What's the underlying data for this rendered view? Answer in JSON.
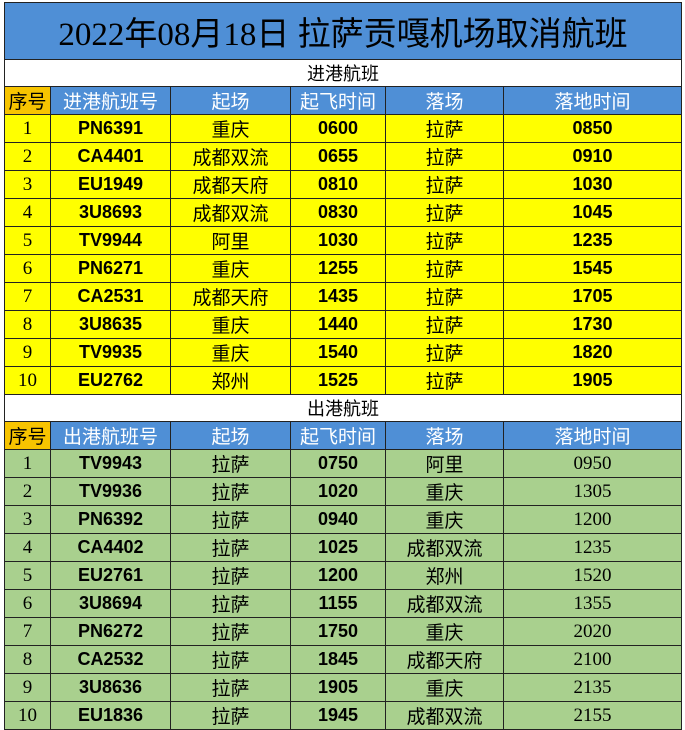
{
  "title": "2022年08月18日 拉萨贡嘎机场取消航班",
  "sections": [
    {
      "label": "进港航班",
      "headers": [
        "序号",
        "进港航班号",
        "起场",
        "起飞时间",
        "落场",
        "落地时间"
      ],
      "rows": [
        [
          "1",
          "PN6391",
          "重庆",
          "0600",
          "拉萨",
          "0850"
        ],
        [
          "2",
          "CA4401",
          "成都双流",
          "0655",
          "拉萨",
          "0910"
        ],
        [
          "3",
          "EU1949",
          "成都天府",
          "0810",
          "拉萨",
          "1030"
        ],
        [
          "4",
          "3U8693",
          "成都双流",
          "0830",
          "拉萨",
          "1045"
        ],
        [
          "5",
          "TV9944",
          "阿里",
          "1030",
          "拉萨",
          "1235"
        ],
        [
          "6",
          "PN6271",
          "重庆",
          "1255",
          "拉萨",
          "1545"
        ],
        [
          "7",
          "CA2531",
          "成都天府",
          "1435",
          "拉萨",
          "1705"
        ],
        [
          "8",
          "3U8635",
          "重庆",
          "1440",
          "拉萨",
          "1730"
        ],
        [
          "9",
          "TV9935",
          "重庆",
          "1540",
          "拉萨",
          "1820"
        ],
        [
          "10",
          "EU2762",
          "郑州",
          "1525",
          "拉萨",
          "1905"
        ]
      ]
    },
    {
      "label": "出港航班",
      "headers": [
        "序号",
        "出港航班号",
        "起场",
        "起飞时间",
        "落场",
        "落地时间"
      ],
      "rows": [
        [
          "1",
          "TV9943",
          "拉萨",
          "0750",
          "阿里",
          "0950"
        ],
        [
          "2",
          "TV9936",
          "拉萨",
          "1020",
          "重庆",
          "1305"
        ],
        [
          "3",
          "PN6392",
          "拉萨",
          "0940",
          "重庆",
          "1200"
        ],
        [
          "4",
          "CA4402",
          "拉萨",
          "1025",
          "成都双流",
          "1235"
        ],
        [
          "5",
          "EU2761",
          "拉萨",
          "1200",
          "郑州",
          "1520"
        ],
        [
          "6",
          "3U8694",
          "拉萨",
          "1155",
          "成都双流",
          "1355"
        ],
        [
          "7",
          "PN6272",
          "拉萨",
          "1750",
          "重庆",
          "2020"
        ],
        [
          "8",
          "CA2532",
          "拉萨",
          "1845",
          "成都天府",
          "2100"
        ],
        [
          "9",
          "3U8636",
          "拉萨",
          "1905",
          "重庆",
          "2135"
        ],
        [
          "10",
          "EU1836",
          "拉萨",
          "1945",
          "成都双流",
          "2155"
        ]
      ]
    }
  ]
}
